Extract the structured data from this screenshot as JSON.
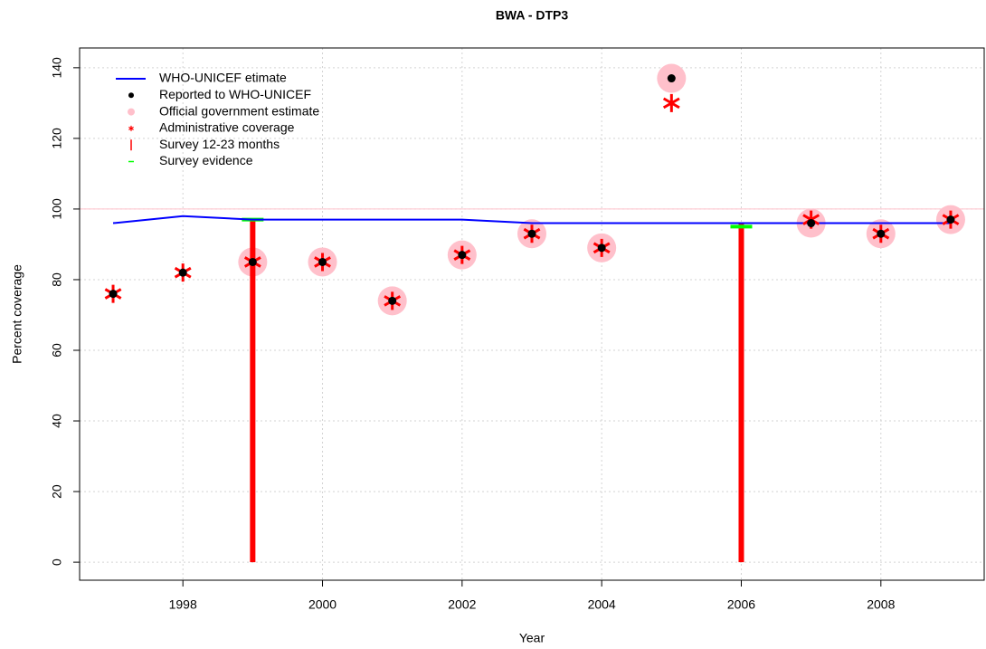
{
  "chart_data": {
    "type": "line",
    "title": "BWA  -  DTP3",
    "x_label": "Year",
    "y_label": "Percent coverage",
    "xlim": [
      1996.52,
      2009.48
    ],
    "ylim": [
      -5.1,
      145.6
    ],
    "xticks": [
      1998,
      2000,
      2002,
      2004,
      2006,
      2008
    ],
    "yticks": [
      0,
      20,
      40,
      60,
      80,
      100,
      120,
      140
    ],
    "grid": true,
    "ref_line": 100,
    "ref_line_color": "#ffc0cb",
    "legend": "top-left",
    "x": [
      1997,
      1998,
      1999,
      2000,
      2001,
      2002,
      2003,
      2004,
      2005,
      2006,
      2007,
      2008,
      2009
    ],
    "series": [
      {
        "name": "WHO-UNICEF etimate",
        "marker": "line",
        "color": "#0000ff",
        "values": [
          96,
          98,
          97,
          97,
          97,
          97,
          96,
          96,
          96,
          96,
          96,
          96,
          96
        ]
      },
      {
        "name": "Reported to WHO-UNICEF",
        "marker": "dot",
        "color": "#000000",
        "values": [
          76,
          82,
          85,
          85,
          74,
          87,
          93,
          89,
          137,
          null,
          96,
          93,
          97
        ]
      },
      {
        "name": "Official government estimate",
        "marker": "circle",
        "color": "#ffc0cb",
        "values": [
          null,
          null,
          85,
          85,
          74,
          87,
          93,
          89,
          137,
          null,
          96,
          93,
          97
        ]
      },
      {
        "name": "Administrative coverage",
        "marker": "star",
        "color": "#ff0000",
        "values": [
          76,
          82,
          85,
          85,
          74,
          87,
          93,
          89,
          130,
          null,
          97,
          93,
          97
        ]
      },
      {
        "name": "Survey 12-23 months",
        "marker": "bar",
        "color": "#ff0000",
        "values": [
          null,
          null,
          97,
          null,
          null,
          null,
          null,
          null,
          null,
          96,
          null,
          null,
          null
        ]
      },
      {
        "name": "Survey evidence",
        "marker": "tick",
        "color": "#00ff00",
        "values": [
          null,
          null,
          97,
          null,
          null,
          null,
          null,
          null,
          null,
          95,
          null,
          null,
          null
        ]
      }
    ]
  }
}
